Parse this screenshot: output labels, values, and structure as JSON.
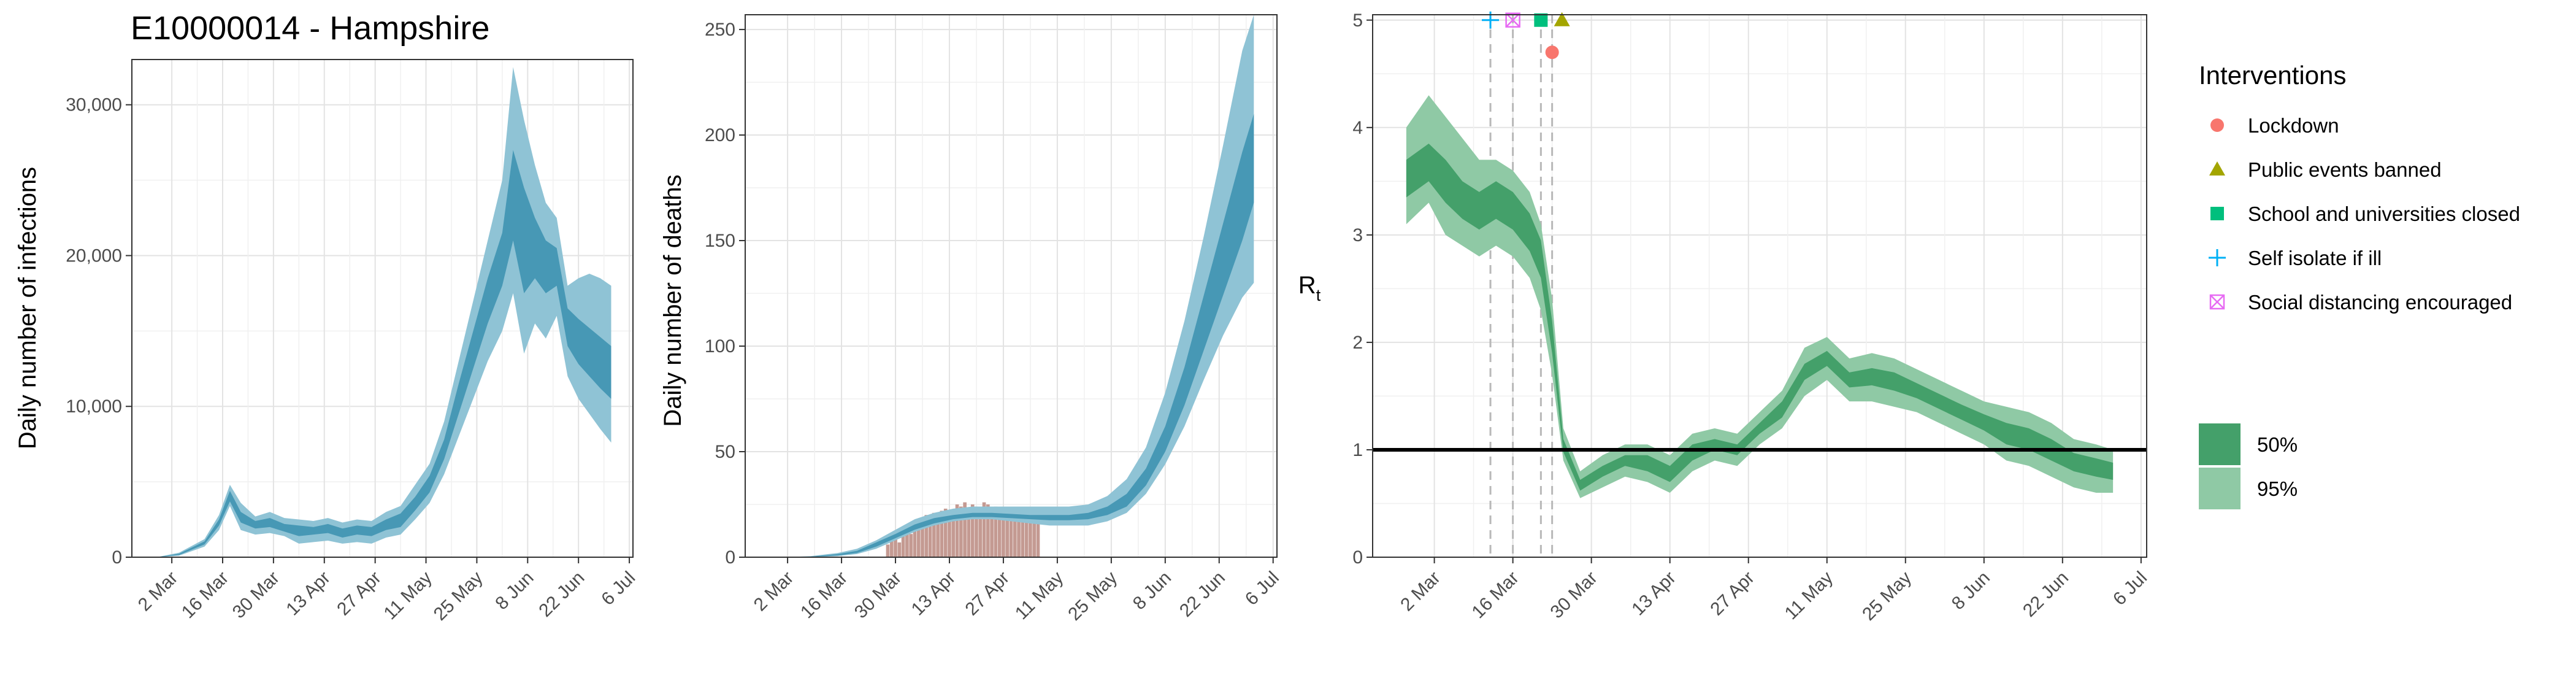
{
  "chart_data": [
    {
      "type": "area",
      "title": "E10000014 - Hampshire",
      "xlabel": "",
      "ylabel": "Daily number of infections",
      "x_ticks": [
        "2 Mar",
        "16 Mar",
        "30 Mar",
        "13 Apr",
        "27 Apr",
        "11 May",
        "25 May",
        "8 Jun",
        "22 Jun",
        "6 Jul"
      ],
      "y_ticks": [
        "0",
        "10,000",
        "20,000",
        "30,000"
      ],
      "ylim": [
        0,
        33000
      ],
      "grid": true,
      "colors": {
        "band95": "#8fc3d5",
        "band50": "#4798b5"
      },
      "x_dates": [
        "2020-02-20",
        "2020-02-27",
        "2020-03-04",
        "2020-03-11",
        "2020-03-15",
        "2020-03-18",
        "2020-03-21",
        "2020-03-25",
        "2020-03-29",
        "2020-04-02",
        "2020-04-06",
        "2020-04-10",
        "2020-04-14",
        "2020-04-18",
        "2020-04-22",
        "2020-04-26",
        "2020-04-30",
        "2020-05-04",
        "2020-05-08",
        "2020-05-12",
        "2020-05-16",
        "2020-05-20",
        "2020-05-24",
        "2020-05-28",
        "2020-06-01",
        "2020-06-04",
        "2020-06-07",
        "2020-06-10",
        "2020-06-13",
        "2020-06-16",
        "2020-06-19",
        "2020-06-22",
        "2020-06-25",
        "2020-06-28",
        "2020-07-01"
      ],
      "upper95": [
        0,
        10,
        300,
        1200,
        2800,
        4800,
        3600,
        2700,
        3000,
        2600,
        2500,
        2400,
        2600,
        2300,
        2500,
        2400,
        3000,
        3400,
        4800,
        6200,
        9000,
        13000,
        17000,
        21000,
        25000,
        32500,
        29000,
        26000,
        23500,
        22500,
        18000,
        18500,
        18800,
        18500,
        18000
      ],
      "lower95": [
        0,
        0,
        100,
        700,
        1800,
        3400,
        1800,
        1500,
        1600,
        1400,
        900,
        1000,
        1100,
        900,
        1000,
        900,
        1300,
        1500,
        2500,
        3600,
        5500,
        8000,
        10500,
        13000,
        15000,
        17500,
        13500,
        15500,
        14500,
        16000,
        12000,
        10500,
        9500,
        8500,
        7600
      ],
      "upper50": [
        0,
        5,
        230,
        1050,
        2500,
        4400,
        3000,
        2400,
        2600,
        2200,
        2100,
        2000,
        2200,
        1900,
        2100,
        2000,
        2500,
        2900,
        4000,
        5400,
        7800,
        11500,
        15000,
        18500,
        21500,
        27000,
        24500,
        22500,
        21000,
        20500,
        16500,
        15800,
        15200,
        14600,
        14000
      ],
      "lower50": [
        0,
        0,
        150,
        850,
        2100,
        3700,
        2300,
        1900,
        2000,
        1700,
        1400,
        1500,
        1600,
        1300,
        1500,
        1400,
        1800,
        2000,
        3100,
        4300,
        6500,
        9500,
        12500,
        15500,
        18000,
        21000,
        17500,
        18500,
        17500,
        18000,
        14000,
        12800,
        12000,
        11200,
        10500
      ]
    },
    {
      "type": "area",
      "title": "",
      "xlabel": "",
      "ylabel": "Daily number of deaths",
      "x_ticks": [
        "2 Mar",
        "16 Mar",
        "30 Mar",
        "13 Apr",
        "27 Apr",
        "11 May",
        "25 May",
        "8 Jun",
        "22 Jun",
        "6 Jul"
      ],
      "y_ticks": [
        "0",
        "50",
        "100",
        "150",
        "200",
        "250"
      ],
      "ylim": [
        0,
        257
      ],
      "grid": true,
      "colors": {
        "band95": "#8fc3d5",
        "band50": "#4798b5",
        "bars": "#c49a92"
      },
      "x_dates": [
        "2020-02-20",
        "2020-03-01",
        "2020-03-08",
        "2020-03-15",
        "2020-03-20",
        "2020-03-25",
        "2020-03-30",
        "2020-04-04",
        "2020-04-09",
        "2020-04-14",
        "2020-04-19",
        "2020-04-24",
        "2020-04-29",
        "2020-05-04",
        "2020-05-09",
        "2020-05-14",
        "2020-05-19",
        "2020-05-24",
        "2020-05-29",
        "2020-06-03",
        "2020-06-08",
        "2020-06-13",
        "2020-06-18",
        "2020-06-23",
        "2020-06-28",
        "2020-07-01"
      ],
      "upper95": [
        0,
        0,
        0.5,
        2,
        4,
        8,
        13,
        18,
        21,
        23,
        24,
        24,
        24,
        24,
        24,
        24,
        25,
        29,
        37,
        52,
        78,
        112,
        152,
        195,
        240,
        257
      ],
      "lower95": [
        0,
        0,
        0,
        0.5,
        1.5,
        4,
        8,
        12,
        15,
        17,
        18,
        18,
        17,
        16,
        15,
        15,
        15,
        17,
        21,
        30,
        44,
        62,
        84,
        105,
        123,
        130
      ],
      "upper50": [
        0,
        0,
        0.3,
        1.5,
        3,
        7,
        11,
        15.5,
        18.5,
        20,
        21,
        21,
        20.5,
        20,
        20,
        20,
        21,
        24,
        30,
        42,
        62,
        90,
        124,
        158,
        192,
        210
      ],
      "lower50": [
        0,
        0,
        0.1,
        0.8,
        2,
        5,
        9,
        13,
        16,
        18,
        19,
        19,
        18.5,
        18,
        17.5,
        17.5,
        18,
        20,
        24,
        34,
        50,
        72,
        98,
        124,
        150,
        168
      ],
      "bar_dates": [
        "2020-03-28",
        "2020-03-29",
        "2020-03-30",
        "2020-03-31",
        "2020-04-01",
        "2020-04-02",
        "2020-04-03",
        "2020-04-04",
        "2020-04-05",
        "2020-04-06",
        "2020-04-07",
        "2020-04-08",
        "2020-04-09",
        "2020-04-10",
        "2020-04-11",
        "2020-04-12",
        "2020-04-13",
        "2020-04-14",
        "2020-04-15",
        "2020-04-16",
        "2020-04-17",
        "2020-04-18",
        "2020-04-19",
        "2020-04-20",
        "2020-04-21",
        "2020-04-22",
        "2020-04-23",
        "2020-04-24",
        "2020-04-25",
        "2020-04-26",
        "2020-04-27",
        "2020-04-28",
        "2020-04-29",
        "2020-04-30",
        "2020-05-01",
        "2020-05-02",
        "2020-05-03",
        "2020-05-04",
        "2020-05-05",
        "2020-05-06"
      ],
      "bar_values": [
        6,
        8,
        10,
        7,
        12,
        14,
        11,
        15,
        16,
        18,
        20,
        17,
        21,
        19,
        22,
        23,
        20,
        22,
        25,
        24,
        26,
        22,
        25,
        24,
        21,
        26,
        25,
        23,
        24,
        22,
        20,
        21,
        19,
        22,
        20,
        18,
        19,
        17,
        18,
        16
      ]
    },
    {
      "type": "area",
      "title": "",
      "xlabel": "",
      "ylabel": "R",
      "ylabel_sub": "t",
      "x_ticks": [
        "2 Mar",
        "16 Mar",
        "30 Mar",
        "13 Apr",
        "27 Apr",
        "11 May",
        "25 May",
        "8 Jun",
        "22 Jun",
        "6 Jul"
      ],
      "y_ticks": [
        "0",
        "1",
        "2",
        "3",
        "4",
        "5"
      ],
      "ylim": [
        0,
        5.05
      ],
      "grid": true,
      "reference_line": 1,
      "colors": {
        "band95": "#8fc9a5",
        "band50": "#44a06a",
        "line": "#000000"
      },
      "x_dates": [
        "2020-02-26",
        "2020-03-01",
        "2020-03-04",
        "2020-03-07",
        "2020-03-10",
        "2020-03-13",
        "2020-03-16",
        "2020-03-19",
        "2020-03-21",
        "2020-03-23",
        "2020-03-25",
        "2020-03-28",
        "2020-04-01",
        "2020-04-05",
        "2020-04-09",
        "2020-04-13",
        "2020-04-17",
        "2020-04-21",
        "2020-04-25",
        "2020-04-29",
        "2020-05-03",
        "2020-05-07",
        "2020-05-11",
        "2020-05-15",
        "2020-05-19",
        "2020-05-23",
        "2020-05-27",
        "2020-05-31",
        "2020-06-04",
        "2020-06-08",
        "2020-06-12",
        "2020-06-16",
        "2020-06-20",
        "2020-06-24",
        "2020-06-28",
        "2020-07-01"
      ],
      "upper95": [
        4.0,
        4.3,
        4.1,
        3.9,
        3.7,
        3.7,
        3.6,
        3.4,
        3.1,
        2.4,
        1.2,
        0.8,
        0.95,
        1.05,
        1.05,
        0.95,
        1.15,
        1.2,
        1.15,
        1.35,
        1.55,
        1.95,
        2.05,
        1.85,
        1.9,
        1.85,
        1.75,
        1.65,
        1.55,
        1.45,
        1.4,
        1.35,
        1.25,
        1.1,
        1.05,
        1.0
      ],
      "lower95": [
        3.1,
        3.3,
        3.0,
        2.9,
        2.8,
        2.9,
        2.8,
        2.6,
        2.3,
        1.7,
        0.9,
        0.55,
        0.65,
        0.75,
        0.7,
        0.6,
        0.8,
        0.9,
        0.85,
        1.05,
        1.2,
        1.5,
        1.65,
        1.45,
        1.45,
        1.4,
        1.35,
        1.25,
        1.15,
        1.05,
        0.9,
        0.85,
        0.75,
        0.65,
        0.6,
        0.6
      ],
      "upper50": [
        3.7,
        3.85,
        3.7,
        3.5,
        3.4,
        3.5,
        3.4,
        3.2,
        2.95,
        2.2,
        1.1,
        0.72,
        0.85,
        0.95,
        0.95,
        0.85,
        1.05,
        1.1,
        1.05,
        1.25,
        1.45,
        1.8,
        1.92,
        1.72,
        1.76,
        1.72,
        1.62,
        1.52,
        1.42,
        1.33,
        1.25,
        1.2,
        1.1,
        0.97,
        0.92,
        0.88
      ],
      "lower50": [
        3.35,
        3.5,
        3.3,
        3.15,
        3.05,
        3.15,
        3.05,
        2.85,
        2.6,
        1.9,
        0.98,
        0.62,
        0.75,
        0.85,
        0.8,
        0.7,
        0.9,
        1.0,
        0.95,
        1.15,
        1.3,
        1.65,
        1.78,
        1.58,
        1.6,
        1.55,
        1.48,
        1.38,
        1.28,
        1.18,
        1.05,
        1.0,
        0.9,
        0.8,
        0.75,
        0.72
      ],
      "interventions": [
        {
          "name": "Lockdown",
          "date": "2020-03-23",
          "r": 4.7,
          "color": "#f8766d",
          "shape": "circle"
        },
        {
          "name": "Public events banned",
          "date": "2020-03-23",
          "r": 5.0,
          "color": "#a3a500",
          "shape": "triangle"
        },
        {
          "name": "School and universities closed",
          "date": "2020-03-21",
          "r": 5.0,
          "color": "#00bf7d",
          "shape": "square"
        },
        {
          "name": "Self isolate if ill",
          "date": "2020-03-12",
          "r": 5.0,
          "color": "#00b0f6",
          "shape": "plus"
        },
        {
          "name": "Social distancing encouraged",
          "date": "2020-03-16",
          "r": 5.0,
          "color": "#e76bf3",
          "shape": "square-x"
        }
      ]
    }
  ],
  "legend": {
    "title": "Interventions",
    "items": [
      {
        "label": "Lockdown",
        "color": "#f8766d",
        "shape": "circle"
      },
      {
        "label": "Public events banned",
        "color": "#a3a500",
        "shape": "triangle"
      },
      {
        "label": "School and universities closed",
        "color": "#00bf7d",
        "shape": "square"
      },
      {
        "label": "Self isolate if ill",
        "color": "#00b0f6",
        "shape": "plus"
      },
      {
        "label": "Social distancing encouraged",
        "color": "#e76bf3",
        "shape": "square-x"
      }
    ],
    "ci_items": [
      {
        "label": "50%",
        "color": "#44a06a"
      },
      {
        "label": "95%",
        "color": "#8fc9a5"
      }
    ]
  }
}
